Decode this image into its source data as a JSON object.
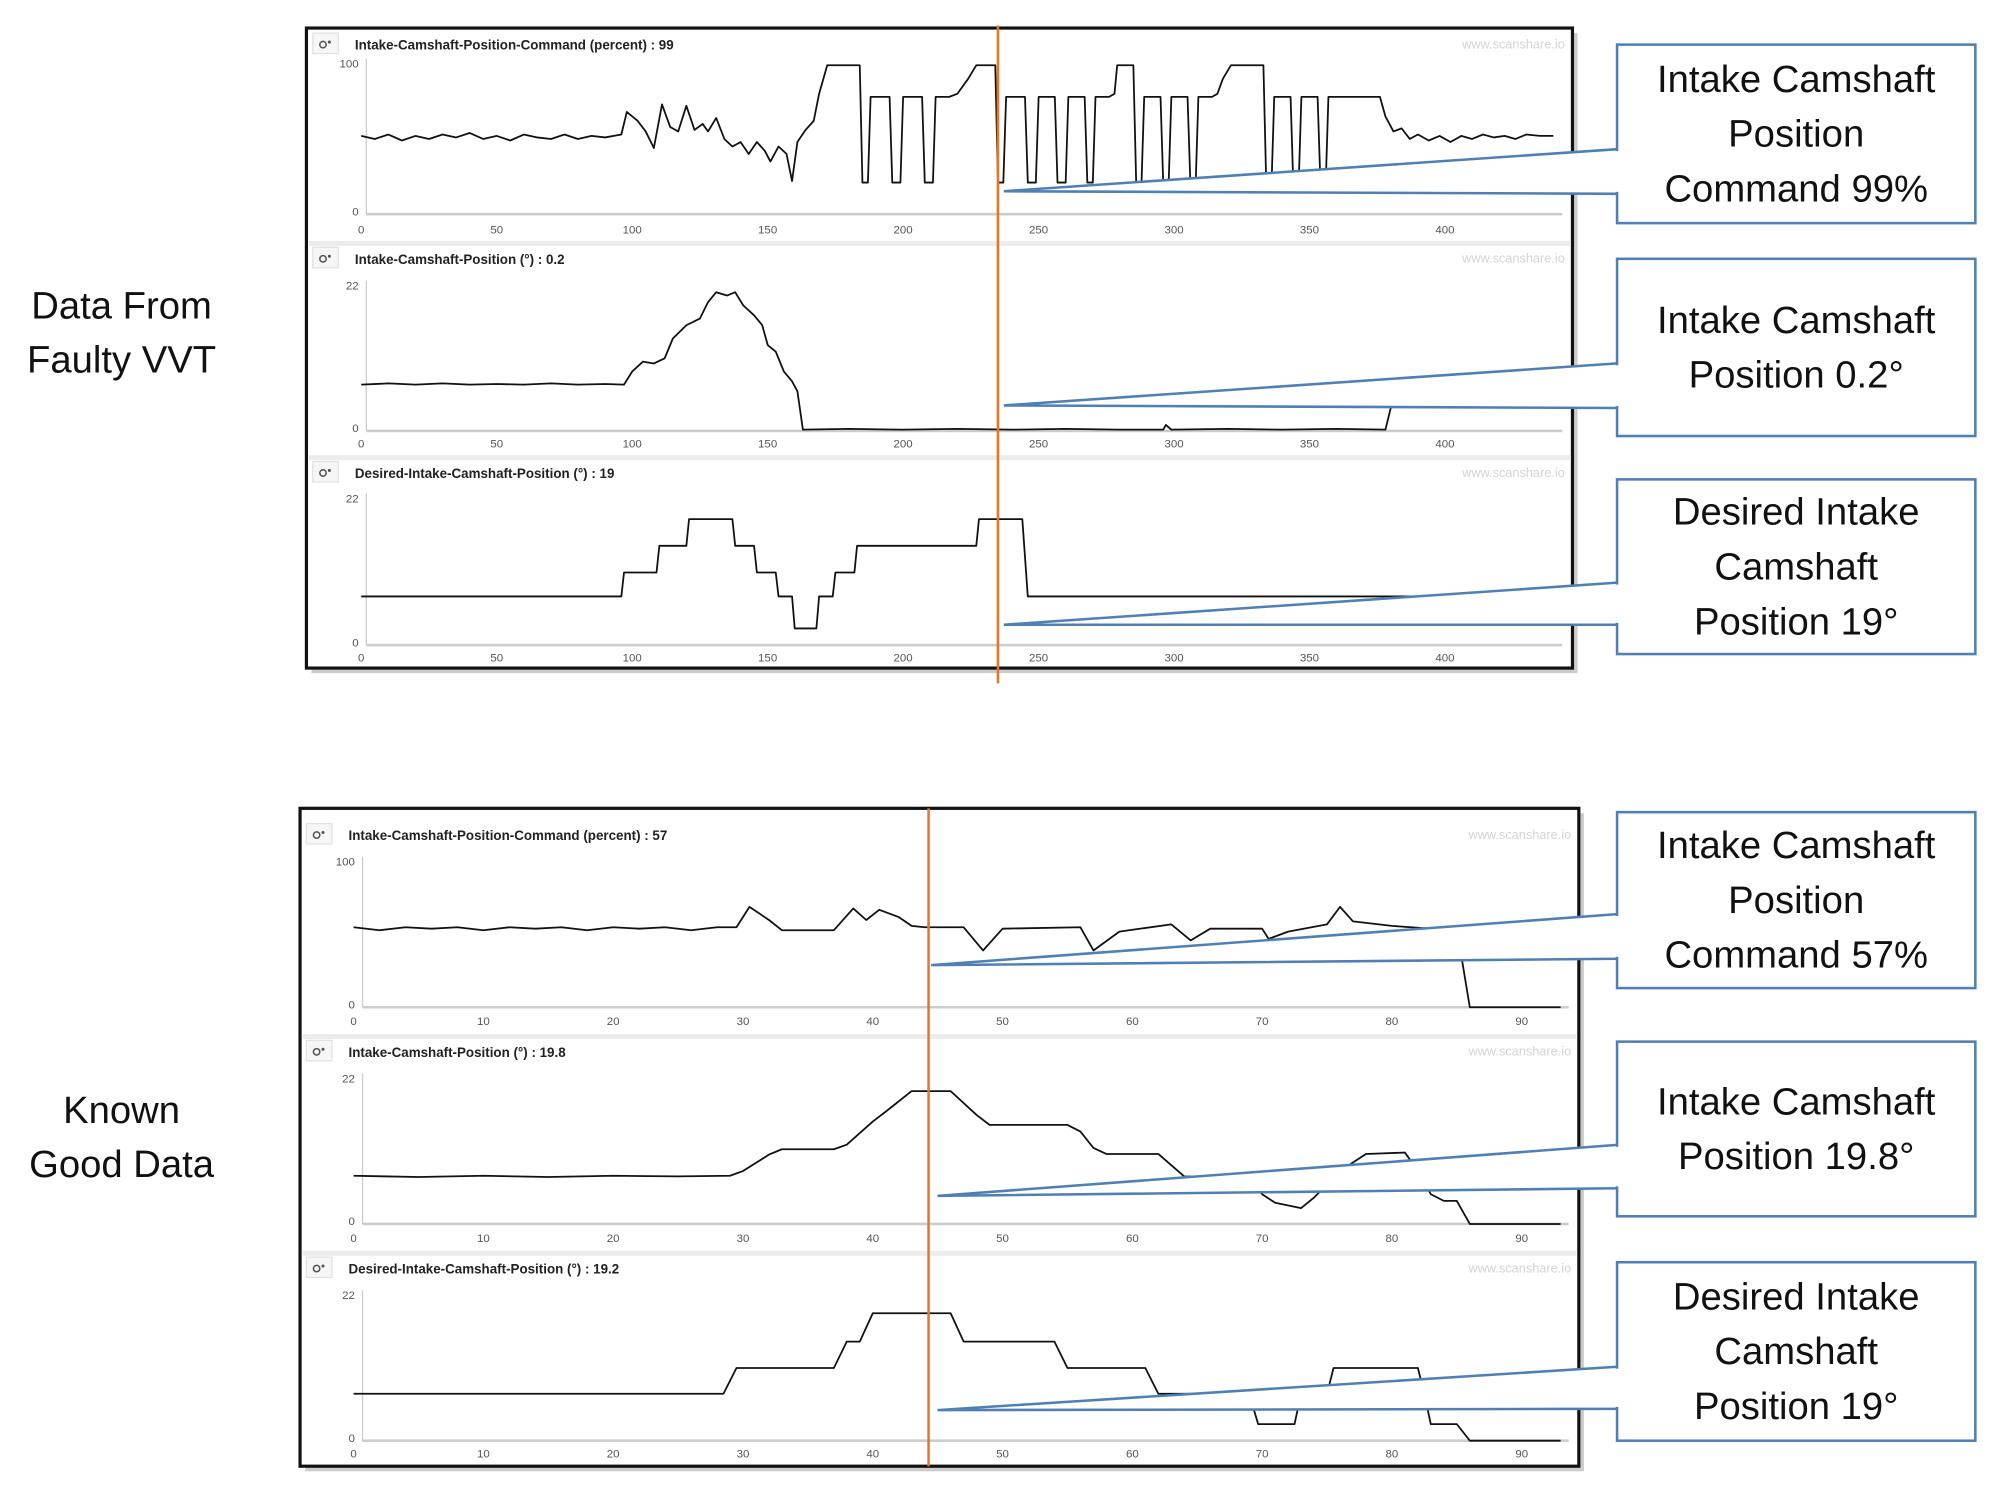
{
  "side_labels": {
    "faulty": [
      "Data From",
      "Faulty VVT"
    ],
    "good": [
      "Known",
      "Good Data"
    ]
  },
  "watermark": "www.scanshare.io",
  "colors": {
    "cursor": "#e8752a",
    "callout_border": "#4f7fb5",
    "trace": "#111111"
  },
  "callouts": [
    {
      "lines": [
        "Intake Camshaft",
        "Position",
        "Command 99%"
      ]
    },
    {
      "lines": [
        "Intake Camshaft",
        "Position 0.2°"
      ]
    },
    {
      "lines": [
        "Desired Intake",
        "Camshaft",
        "Position 19°"
      ]
    },
    {
      "lines": [
        "Intake Camshaft",
        "Position",
        "Command 57%"
      ]
    },
    {
      "lines": [
        "Intake Camshaft",
        "Position 19.8°"
      ]
    },
    {
      "lines": [
        "Desired Intake",
        "Camshaft",
        "Position 19°"
      ]
    }
  ],
  "chart_data": [
    {
      "type": "line",
      "panel": "faulty",
      "title": "Intake-Camshaft-Position-Command (percent) : 99",
      "ylim": [
        0,
        100
      ],
      "yticks": [
        "0",
        "100"
      ],
      "xticks": [
        "0",
        "50",
        "100",
        "150",
        "200",
        "250",
        "300",
        "350",
        "400"
      ],
      "xtick_values": [
        0,
        50,
        100,
        150,
        200,
        250,
        300,
        350,
        400
      ],
      "cursor_x": 235,
      "points": [
        [
          0,
          52
        ],
        [
          5,
          50
        ],
        [
          10,
          53
        ],
        [
          15,
          49
        ],
        [
          20,
          52
        ],
        [
          25,
          50
        ],
        [
          30,
          53
        ],
        [
          35,
          51
        ],
        [
          40,
          54
        ],
        [
          45,
          50
        ],
        [
          50,
          52
        ],
        [
          55,
          49
        ],
        [
          60,
          53
        ],
        [
          65,
          51
        ],
        [
          70,
          50
        ],
        [
          75,
          53
        ],
        [
          80,
          50
        ],
        [
          85,
          52
        ],
        [
          90,
          51
        ],
        [
          96,
          53
        ],
        [
          98,
          68
        ],
        [
          102,
          62
        ],
        [
          105,
          55
        ],
        [
          108,
          44
        ],
        [
          111,
          73
        ],
        [
          114,
          58
        ],
        [
          117,
          55
        ],
        [
          120,
          72
        ],
        [
          123,
          56
        ],
        [
          126,
          60
        ],
        [
          128,
          55
        ],
        [
          131,
          64
        ],
        [
          134,
          50
        ],
        [
          137,
          45
        ],
        [
          140,
          48
        ],
        [
          143,
          40
        ],
        [
          146,
          48
        ],
        [
          149,
          42
        ],
        [
          151,
          35
        ],
        [
          154,
          45
        ],
        [
          157,
          40
        ],
        [
          159,
          22
        ],
        [
          161,
          48
        ],
        [
          164,
          56
        ],
        [
          167,
          62
        ],
        [
          169,
          80
        ],
        [
          172,
          99
        ],
        [
          184,
          99
        ],
        [
          185,
          21
        ],
        [
          187,
          21
        ],
        [
          188,
          78
        ],
        [
          195,
          78
        ],
        [
          196,
          21
        ],
        [
          199,
          21
        ],
        [
          200,
          78
        ],
        [
          207,
          78
        ],
        [
          208,
          21
        ],
        [
          211,
          21
        ],
        [
          212,
          78
        ],
        [
          217,
          78
        ],
        [
          220,
          80
        ],
        [
          224,
          90
        ],
        [
          227,
          99
        ],
        [
          234,
          99
        ],
        [
          235,
          21
        ],
        [
          237,
          21
        ],
        [
          238,
          78
        ],
        [
          245,
          78
        ],
        [
          246,
          21
        ],
        [
          249,
          21
        ],
        [
          250,
          78
        ],
        [
          256,
          78
        ],
        [
          257,
          21
        ],
        [
          260,
          21
        ],
        [
          261,
          78
        ],
        [
          267,
          78
        ],
        [
          268,
          21
        ],
        [
          270,
          21
        ],
        [
          271,
          78
        ],
        [
          276,
          78
        ],
        [
          278,
          80
        ],
        [
          279,
          99
        ],
        [
          285,
          99
        ],
        [
          286,
          21
        ],
        [
          288,
          21
        ],
        [
          289,
          78
        ],
        [
          295,
          78
        ],
        [
          296,
          21
        ],
        [
          298,
          21
        ],
        [
          299,
          78
        ],
        [
          305,
          78
        ],
        [
          306,
          21
        ],
        [
          308,
          21
        ],
        [
          309,
          78
        ],
        [
          314,
          78
        ],
        [
          316,
          80
        ],
        [
          318,
          90
        ],
        [
          321,
          99
        ],
        [
          333,
          99
        ],
        [
          334,
          21
        ],
        [
          336,
          21
        ],
        [
          337,
          78
        ],
        [
          343,
          78
        ],
        [
          344,
          21
        ],
        [
          346,
          21
        ],
        [
          347,
          78
        ],
        [
          353,
          78
        ],
        [
          354,
          21
        ],
        [
          356,
          21
        ],
        [
          357,
          78
        ],
        [
          376,
          78
        ],
        [
          378,
          65
        ],
        [
          381,
          55
        ],
        [
          384,
          57
        ],
        [
          387,
          50
        ],
        [
          390,
          53
        ],
        [
          394,
          49
        ],
        [
          398,
          52
        ],
        [
          402,
          48
        ],
        [
          406,
          52
        ],
        [
          410,
          50
        ],
        [
          414,
          53
        ],
        [
          418,
          51
        ],
        [
          422,
          52
        ],
        [
          426,
          50
        ],
        [
          430,
          53
        ],
        [
          435,
          52
        ],
        [
          440,
          52
        ]
      ]
    },
    {
      "type": "line",
      "panel": "faulty",
      "title": "Intake-Camshaft-Position (°) : 0.2",
      "ylim": [
        0,
        22
      ],
      "yticks": [
        "0",
        "22"
      ],
      "xticks": [
        "0",
        "50",
        "100",
        "150",
        "200",
        "250",
        "300",
        "350",
        "400"
      ],
      "xtick_values": [
        0,
        50,
        100,
        150,
        200,
        250,
        300,
        350,
        400
      ],
      "cursor_x": 235,
      "points": [
        [
          0,
          7
        ],
        [
          10,
          7.2
        ],
        [
          20,
          7
        ],
        [
          30,
          7.2
        ],
        [
          40,
          7
        ],
        [
          50,
          7.1
        ],
        [
          60,
          7
        ],
        [
          70,
          7.2
        ],
        [
          80,
          7
        ],
        [
          90,
          7.1
        ],
        [
          97,
          7
        ],
        [
          100,
          9
        ],
        [
          104,
          10.5
        ],
        [
          108,
          10.2
        ],
        [
          112,
          11
        ],
        [
          115,
          14
        ],
        [
          120,
          16
        ],
        [
          125,
          17
        ],
        [
          128,
          19.5
        ],
        [
          131,
          21
        ],
        [
          135,
          20.5
        ],
        [
          138,
          21
        ],
        [
          141,
          19
        ],
        [
          145,
          17.5
        ],
        [
          148,
          16
        ],
        [
          150,
          13
        ],
        [
          153,
          12
        ],
        [
          156,
          9
        ],
        [
          159,
          7.5
        ],
        [
          161,
          6
        ],
        [
          163,
          0.2
        ],
        [
          180,
          0.3
        ],
        [
          200,
          0.2
        ],
        [
          220,
          0.3
        ],
        [
          240,
          0.2
        ],
        [
          260,
          0.3
        ],
        [
          280,
          0.2
        ],
        [
          296,
          0.2
        ],
        [
          297,
          0.9
        ],
        [
          299,
          0.2
        ],
        [
          320,
          0.3
        ],
        [
          340,
          0.2
        ],
        [
          360,
          0.3
        ],
        [
          378,
          0.2
        ],
        [
          380,
          3.5
        ]
      ]
    },
    {
      "type": "line",
      "panel": "faulty",
      "title": "Desired-Intake-Camshaft-Position (°) : 19",
      "ylim": [
        0,
        22
      ],
      "yticks": [
        "0",
        "22"
      ],
      "xticks": [
        "0",
        "50",
        "100",
        "150",
        "200",
        "250",
        "300",
        "350",
        "400"
      ],
      "xtick_values": [
        0,
        50,
        100,
        150,
        200,
        250,
        300,
        350,
        400
      ],
      "cursor_x": 235,
      "points": [
        [
          0,
          7.3
        ],
        [
          96,
          7.3
        ],
        [
          97,
          10.9
        ],
        [
          109,
          10.9
        ],
        [
          110,
          14.9
        ],
        [
          120,
          14.9
        ],
        [
          121,
          18.9
        ],
        [
          137,
          18.9
        ],
        [
          138,
          14.9
        ],
        [
          145,
          14.9
        ],
        [
          146,
          10.9
        ],
        [
          153,
          10.9
        ],
        [
          154,
          7.3
        ],
        [
          159,
          7.3
        ],
        [
          160,
          2.5
        ],
        [
          168,
          2.5
        ],
        [
          169,
          7.3
        ],
        [
          174,
          7.3
        ],
        [
          175,
          10.9
        ],
        [
          182,
          10.9
        ],
        [
          183,
          14.9
        ],
        [
          227,
          14.9
        ],
        [
          228,
          18.9
        ],
        [
          244,
          18.9
        ],
        [
          246,
          7.3
        ],
        [
          440,
          7.3
        ]
      ]
    },
    {
      "type": "line",
      "panel": "good",
      "title": "Intake-Camshaft-Position-Command (percent) : 57",
      "ylim": [
        0,
        100
      ],
      "yticks": [
        "0",
        "100"
      ],
      "xticks": [
        "0",
        "10",
        "20",
        "30",
        "40",
        "50",
        "60",
        "70",
        "80",
        "90"
      ],
      "xtick_values": [
        0,
        10,
        20,
        30,
        40,
        50,
        60,
        70,
        80,
        90
      ],
      "cursor_x": 44.3,
      "points": [
        [
          0,
          55
        ],
        [
          2,
          53
        ],
        [
          4,
          55
        ],
        [
          6,
          54
        ],
        [
          8,
          55
        ],
        [
          10,
          53
        ],
        [
          12,
          55
        ],
        [
          14,
          54
        ],
        [
          16,
          55
        ],
        [
          18,
          53
        ],
        [
          20,
          55
        ],
        [
          22,
          54
        ],
        [
          24,
          55
        ],
        [
          26,
          53
        ],
        [
          28,
          55
        ],
        [
          29.5,
          55
        ],
        [
          30.5,
          69
        ],
        [
          32,
          60
        ],
        [
          33,
          53
        ],
        [
          37,
          53
        ],
        [
          38.5,
          68
        ],
        [
          39.5,
          60
        ],
        [
          40.5,
          67
        ],
        [
          42,
          62
        ],
        [
          43,
          56
        ],
        [
          44,
          55
        ],
        [
          47,
          55
        ],
        [
          48.5,
          39
        ],
        [
          50,
          54
        ],
        [
          56,
          55
        ],
        [
          57,
          39
        ],
        [
          59,
          52
        ],
        [
          63,
          57
        ],
        [
          64.5,
          46
        ],
        [
          66,
          54
        ],
        [
          70,
          54
        ],
        [
          70.5,
          47
        ],
        [
          72,
          52
        ],
        [
          75,
          57
        ],
        [
          76,
          69
        ],
        [
          77,
          59
        ],
        [
          80,
          56
        ],
        [
          83,
          54
        ],
        [
          85,
          54
        ],
        [
          86,
          0
        ],
        [
          93,
          0
        ]
      ]
    },
    {
      "type": "line",
      "panel": "good",
      "title": "Intake-Camshaft-Position (°) : 19.8",
      "ylim": [
        0,
        22
      ],
      "yticks": [
        "0",
        "22"
      ],
      "xticks": [
        "0",
        "10",
        "20",
        "30",
        "40",
        "50",
        "60",
        "70",
        "80",
        "90"
      ],
      "xtick_values": [
        0,
        10,
        20,
        30,
        40,
        50,
        60,
        70,
        80,
        90
      ],
      "cursor_x": 44.3,
      "points": [
        [
          0,
          7.3
        ],
        [
          5,
          7.1
        ],
        [
          10,
          7.3
        ],
        [
          15,
          7.1
        ],
        [
          20,
          7.3
        ],
        [
          25,
          7.2
        ],
        [
          29,
          7.3
        ],
        [
          30,
          8
        ],
        [
          32,
          10.5
        ],
        [
          33,
          11.3
        ],
        [
          37,
          11.3
        ],
        [
          38,
          12
        ],
        [
          40,
          15.5
        ],
        [
          41,
          17
        ],
        [
          43,
          20.1
        ],
        [
          46,
          20.1
        ],
        [
          48,
          16.5
        ],
        [
          49,
          15
        ],
        [
          55,
          15
        ],
        [
          56,
          14
        ],
        [
          57,
          11.5
        ],
        [
          58,
          10.6
        ],
        [
          62,
          10.6
        ],
        [
          64,
          7.2
        ],
        [
          69,
          7
        ],
        [
          70,
          4.5
        ],
        [
          71,
          3.2
        ],
        [
          73,
          2.4
        ],
        [
          74,
          4
        ],
        [
          76,
          8
        ],
        [
          78,
          10.6
        ],
        [
          81,
          10.8
        ],
        [
          82,
          8
        ],
        [
          83,
          4.5
        ],
        [
          84,
          3.5
        ],
        [
          85,
          3.5
        ],
        [
          86,
          0
        ],
        [
          93,
          0
        ]
      ]
    },
    {
      "type": "line",
      "panel": "good",
      "title": "Desired-Intake-Camshaft-Position (°) : 19.2",
      "ylim": [
        0,
        22
      ],
      "yticks": [
        "0",
        "22"
      ],
      "xticks": [
        "0",
        "10",
        "20",
        "30",
        "40",
        "50",
        "60",
        "70",
        "80",
        "90"
      ],
      "xtick_values": [
        0,
        10,
        20,
        30,
        40,
        50,
        60,
        70,
        80,
        90
      ],
      "cursor_x": 44.3,
      "points": [
        [
          0,
          7.1
        ],
        [
          28.5,
          7.1
        ],
        [
          29.5,
          11
        ],
        [
          37,
          11
        ],
        [
          38,
          15
        ],
        [
          39,
          15
        ],
        [
          40,
          19.3
        ],
        [
          46,
          19.3
        ],
        [
          47,
          15
        ],
        [
          54,
          15
        ],
        [
          55,
          11
        ],
        [
          61,
          11
        ],
        [
          62,
          7.1
        ],
        [
          69,
          7.1
        ],
        [
          69.7,
          2.5
        ],
        [
          72.5,
          2.5
        ],
        [
          73,
          7.1
        ],
        [
          75,
          7.1
        ],
        [
          75.5,
          11
        ],
        [
          82,
          11
        ],
        [
          82.5,
          7.1
        ],
        [
          83,
          2.5
        ],
        [
          85,
          2.5
        ],
        [
          86,
          0
        ],
        [
          93,
          0
        ]
      ]
    }
  ]
}
